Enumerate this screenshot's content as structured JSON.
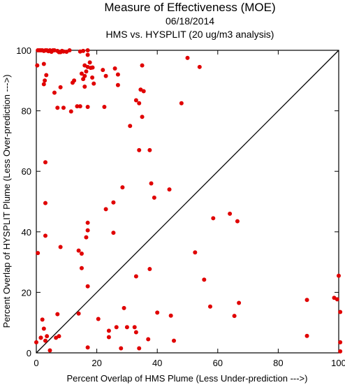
{
  "chart_data": {
    "type": "scatter",
    "title": "Measure of Effectiveness (MOE)",
    "date": "06/18/2014",
    "subtitle": "HMS vs. HYSPLIT  (20 ug/m3 analysis)",
    "xlabel": "Percent Overlap of HMS Plume (Less Under-prediction --->)",
    "ylabel": "Percent Overlap of HYSPLIT Plume (Less Over-prediction --->)",
    "xlim": [
      0,
      100
    ],
    "ylim": [
      0,
      100
    ],
    "xticks": [
      "0",
      "20",
      "40",
      "60",
      "80",
      "100"
    ],
    "yticks": [
      "0",
      "20",
      "40",
      "60",
      "80",
      "100"
    ],
    "grid": false,
    "legend": "none",
    "reference_line": "diagonal y = x",
    "point_color": "#e00000",
    "points": [
      [
        0.5,
        100
      ],
      [
        1,
        100
      ],
      [
        1.5,
        100
      ],
      [
        2,
        100
      ],
      [
        2.5,
        99.8
      ],
      [
        3,
        100
      ],
      [
        3.5,
        100
      ],
      [
        4,
        99.7
      ],
      [
        4.5,
        100
      ],
      [
        5,
        99.5
      ],
      [
        5.5,
        100
      ],
      [
        6,
        100
      ],
      [
        7,
        99.8
      ],
      [
        7.5,
        99.4
      ],
      [
        8,
        99.4
      ],
      [
        8.5,
        99.8
      ],
      [
        9,
        99.6
      ],
      [
        10,
        99.5
      ],
      [
        11,
        100
      ],
      [
        14.5,
        99.6
      ],
      [
        15.5,
        99.8
      ],
      [
        17,
        100
      ],
      [
        0.3,
        95
      ],
      [
        2.5,
        95.5
      ],
      [
        3.3,
        91.8
      ],
      [
        2.8,
        90
      ],
      [
        2.5,
        88.8
      ],
      [
        6,
        86
      ],
      [
        8,
        87.8
      ],
      [
        12.5,
        90
      ],
      [
        12,
        89.3
      ],
      [
        16,
        95
      ],
      [
        16.5,
        93
      ],
      [
        17,
        94.5
      ],
      [
        17.7,
        96
      ],
      [
        18,
        94.2
      ],
      [
        18.6,
        94.3
      ],
      [
        17,
        98.5
      ],
      [
        15,
        92.3
      ],
      [
        16,
        91.5
      ],
      [
        15.5,
        90.5
      ],
      [
        18.5,
        91
      ],
      [
        19,
        89
      ],
      [
        16,
        88
      ],
      [
        22,
        93.5
      ],
      [
        23,
        91.5
      ],
      [
        26,
        94
      ],
      [
        27,
        92
      ],
      [
        27,
        88.5
      ],
      [
        35,
        95
      ],
      [
        34.5,
        87
      ],
      [
        35.5,
        86.5
      ],
      [
        33,
        83.5
      ],
      [
        34,
        82.5
      ],
      [
        48,
        82.5
      ],
      [
        50,
        97.5
      ],
      [
        54,
        94.5
      ],
      [
        7,
        81
      ],
      [
        9,
        81
      ],
      [
        11.5,
        79.8
      ],
      [
        13.5,
        81.5
      ],
      [
        14.5,
        81.5
      ],
      [
        17,
        81.3
      ],
      [
        22.5,
        81.3
      ],
      [
        31,
        75
      ],
      [
        35,
        78
      ],
      [
        34,
        67
      ],
      [
        37.5,
        67
      ],
      [
        3,
        63
      ],
      [
        38,
        56
      ],
      [
        39,
        51.3
      ],
      [
        44,
        54
      ],
      [
        28.5,
        54.7
      ],
      [
        25.5,
        49.7
      ],
      [
        3,
        49.5
      ],
      [
        23,
        47.5
      ],
      [
        17,
        43
      ],
      [
        17,
        40.5
      ],
      [
        25.5,
        39.7
      ],
      [
        3,
        38.7
      ],
      [
        16.5,
        38.2
      ],
      [
        8,
        35
      ],
      [
        14,
        33.8
      ],
      [
        15,
        32.8
      ],
      [
        0.5,
        33
      ],
      [
        52.5,
        33.2
      ],
      [
        58.5,
        44.5
      ],
      [
        64,
        46
      ],
      [
        66.5,
        43.5
      ],
      [
        15,
        28
      ],
      [
        17,
        22
      ],
      [
        33,
        25.3
      ],
      [
        37.5,
        27.7
      ],
      [
        55.5,
        24.2
      ],
      [
        0,
        3.5
      ],
      [
        1.5,
        5
      ],
      [
        2,
        11
      ],
      [
        2.5,
        8
      ],
      [
        1.5,
        5
      ],
      [
        3,
        4
      ],
      [
        3.5,
        5.5
      ],
      [
        4.5,
        0.8
      ],
      [
        6.5,
        5
      ],
      [
        7,
        12.8
      ],
      [
        7.5,
        5.5
      ],
      [
        14,
        13
      ],
      [
        20.5,
        11.2
      ],
      [
        24,
        7.3
      ],
      [
        24,
        5.2
      ],
      [
        26.5,
        8.5
      ],
      [
        28,
        1.5
      ],
      [
        29,
        14.8
      ],
      [
        30,
        8.5
      ],
      [
        32.5,
        8.5
      ],
      [
        33,
        6.8
      ],
      [
        34,
        1.5
      ],
      [
        37,
        4.5
      ],
      [
        40,
        13.3
      ],
      [
        44.5,
        12.3
      ],
      [
        45.5,
        4
      ],
      [
        57.5,
        15.3
      ],
      [
        65.5,
        12.2
      ],
      [
        67,
        16.5
      ],
      [
        17,
        1.8
      ],
      [
        89.5,
        17.5
      ],
      [
        89.5,
        5.6
      ],
      [
        98.5,
        18.2
      ],
      [
        99.5,
        17.7
      ],
      [
        100,
        25.5
      ],
      [
        100.5,
        13.5
      ],
      [
        100.5,
        3.5
      ],
      [
        100.5,
        0.5
      ]
    ]
  }
}
